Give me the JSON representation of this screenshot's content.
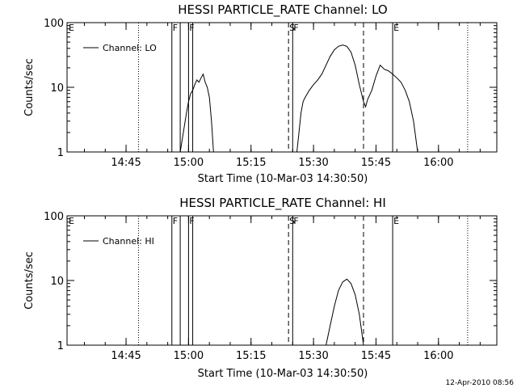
{
  "footer": {
    "date_stamp": "12-Apr-2010 08:56"
  },
  "chart_data": [
    {
      "type": "line",
      "title": "HESSI PARTICLE_RATE Channel: LO",
      "xlabel": "Start Time (10-Mar-03 14:30:50)",
      "ylabel": "Counts/sec",
      "yscale": "log",
      "ylim": [
        1,
        100
      ],
      "xlim": [
        "14:30:50",
        "16:14:00"
      ],
      "yticks": [
        "1",
        "10",
        "100"
      ],
      "xticks": [
        "14:45",
        "15:00",
        "15:15",
        "15:30",
        "15:45",
        "16:00"
      ],
      "legend": {
        "position": "top-left",
        "entries": [
          "Channel: LO"
        ]
      },
      "markers": [
        {
          "time": "14:48:00",
          "style": "dotted",
          "label": ""
        },
        {
          "time": "14:56:00",
          "style": "solid",
          "label": "F"
        },
        {
          "time": "14:58:00",
          "style": "solid",
          "label": ""
        },
        {
          "time": "15:00:00",
          "style": "solid",
          "label": "F"
        },
        {
          "time": "15:01:00",
          "style": "solid",
          "label": ""
        },
        {
          "time": "15:24:00",
          "style": "dashed",
          "label": "S"
        },
        {
          "time": "15:25:00",
          "style": "solid",
          "label": "F"
        },
        {
          "time": "15:42:00",
          "style": "dashed",
          "label": ""
        },
        {
          "time": "15:49:00",
          "style": "solid",
          "label": "E"
        },
        {
          "time": "16:07:00",
          "style": "dotted",
          "label": ""
        }
      ],
      "edge_labels": [
        {
          "time": "14:30:50",
          "label": "E"
        }
      ],
      "series": [
        {
          "name": "Channel: LO",
          "segments": [
            [
              [
                "14:58:00",
                1.0
              ],
              [
                "14:58:30",
                1.6
              ],
              [
                "14:59:00",
                2.5
              ],
              [
                "14:59:30",
                4.0
              ],
              [
                "15:00:00",
                6.0
              ],
              [
                "15:00:30",
                8.0
              ],
              [
                "15:01:00",
                9.0
              ],
              [
                "15:01:30",
                11.0
              ],
              [
                "15:02:00",
                13.0
              ],
              [
                "15:02:30",
                12.0
              ],
              [
                "15:03:00",
                14.0
              ],
              [
                "15:03:30",
                16.0
              ],
              [
                "15:04:00",
                12.0
              ],
              [
                "15:04:30",
                10.0
              ],
              [
                "15:05:00",
                7.0
              ],
              [
                "15:05:30",
                3.0
              ],
              [
                "15:06:00",
                1.0
              ]
            ],
            [
              [
                "15:26:00",
                1.0
              ],
              [
                "15:26:30",
                2.0
              ],
              [
                "15:27:00",
                4.0
              ],
              [
                "15:27:30",
                6.0
              ],
              [
                "15:28:00",
                7.0
              ],
              [
                "15:29:00",
                9.0
              ],
              [
                "15:30:00",
                11.0
              ],
              [
                "15:31:00",
                13.0
              ],
              [
                "15:32:00",
                16.0
              ],
              [
                "15:33:00",
                22.0
              ],
              [
                "15:34:00",
                30.0
              ],
              [
                "15:35:00",
                38.0
              ],
              [
                "15:36:00",
                43.0
              ],
              [
                "15:37:00",
                45.0
              ],
              [
                "15:38:00",
                43.0
              ],
              [
                "15:39:00",
                35.0
              ],
              [
                "15:40:00",
                22.0
              ],
              [
                "15:41:00",
                11.0
              ],
              [
                "15:42:00",
                6.0
              ],
              [
                "15:42:30",
                5.0
              ],
              [
                "15:43:00",
                6.5
              ],
              [
                "15:44:00",
                9.0
              ],
              [
                "15:45:00",
                15.0
              ],
              [
                "15:46:00",
                22.0
              ],
              [
                "15:47:00",
                19.0
              ],
              [
                "15:48:00",
                18.0
              ],
              [
                "15:49:00",
                16.0
              ],
              [
                "15:50:00",
                14.0
              ],
              [
                "15:51:00",
                12.0
              ],
              [
                "15:52:00",
                9.0
              ],
              [
                "15:53:00",
                6.0
              ],
              [
                "15:54:00",
                3.0
              ],
              [
                "15:55:00",
                1.0
              ]
            ]
          ]
        }
      ]
    },
    {
      "type": "line",
      "title": "HESSI PARTICLE_RATE Channel: HI",
      "xlabel": "Start Time (10-Mar-03 14:30:50)",
      "ylabel": "Counts/sec",
      "yscale": "log",
      "ylim": [
        1,
        100
      ],
      "xlim": [
        "14:30:50",
        "16:14:00"
      ],
      "yticks": [
        "1",
        "10",
        "100"
      ],
      "xticks": [
        "14:45",
        "15:00",
        "15:15",
        "15:30",
        "15:45",
        "16:00"
      ],
      "legend": {
        "position": "top-left",
        "entries": [
          "Channel: HI"
        ]
      },
      "markers": [
        {
          "time": "14:48:00",
          "style": "dotted",
          "label": ""
        },
        {
          "time": "14:56:00",
          "style": "solid",
          "label": "F"
        },
        {
          "time": "14:58:00",
          "style": "solid",
          "label": ""
        },
        {
          "time": "15:00:00",
          "style": "solid",
          "label": "F"
        },
        {
          "time": "15:01:00",
          "style": "solid",
          "label": ""
        },
        {
          "time": "15:24:00",
          "style": "dashed",
          "label": "S"
        },
        {
          "time": "15:25:00",
          "style": "solid",
          "label": "F"
        },
        {
          "time": "15:42:00",
          "style": "dashed",
          "label": ""
        },
        {
          "time": "15:49:00",
          "style": "solid",
          "label": "E"
        },
        {
          "time": "16:07:00",
          "style": "dotted",
          "label": ""
        }
      ],
      "edge_labels": [
        {
          "time": "14:30:50",
          "label": "E"
        }
      ],
      "series": [
        {
          "name": "Channel: HI",
          "segments": [
            [
              [
                "15:33:00",
                1.0
              ],
              [
                "15:34:00",
                2.0
              ],
              [
                "15:35:00",
                4.0
              ],
              [
                "15:36:00",
                7.0
              ],
              [
                "15:37:00",
                9.5
              ],
              [
                "15:38:00",
                10.5
              ],
              [
                "15:39:00",
                9.0
              ],
              [
                "15:40:00",
                6.0
              ],
              [
                "15:41:00",
                3.0
              ],
              [
                "15:42:00",
                1.0
              ]
            ]
          ]
        }
      ]
    }
  ]
}
